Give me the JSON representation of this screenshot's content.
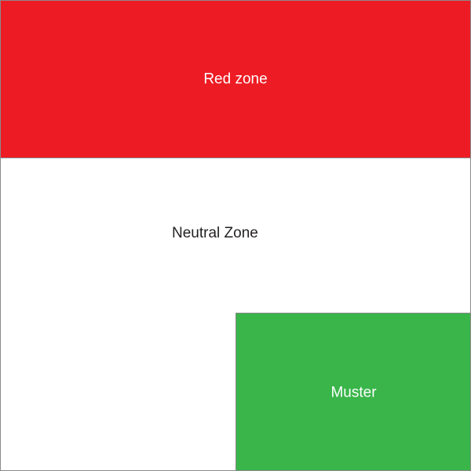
{
  "zones": {
    "red": {
      "label": "Red zone",
      "fill": "#ed1c24",
      "text_color": "#ffffff"
    },
    "neutral": {
      "label": "Neutral Zone",
      "fill": "#ffffff",
      "text_color": "#231f20"
    },
    "muster": {
      "label": "Muster",
      "fill": "#39b54a",
      "text_color": "#ffffff"
    }
  },
  "colors": {
    "border": "#8a8a8a"
  }
}
